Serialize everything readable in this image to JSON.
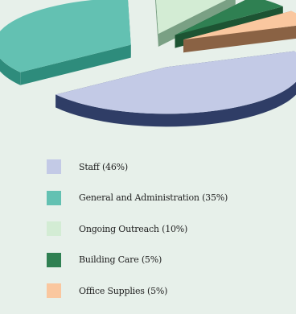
{
  "chart_data": {
    "type": "pie",
    "style": "3d-exploded",
    "title": "",
    "legend_position": "bottom",
    "slices": [
      {
        "label": "Staff (46%)",
        "value": 46,
        "color": "#c3cae6",
        "side": "#2f3d66"
      },
      {
        "label": "General and Administration (35%)",
        "value": 35,
        "color": "#63c1b2",
        "side": "#2e8c7c"
      },
      {
        "label": "Ongoing Outreach (10%)",
        "value": 10,
        "color": "#d3ecd4",
        "side": "#7aa084"
      },
      {
        "label": "Building Care (5%)",
        "value": 5,
        "color": "#2f8052",
        "side": "#1d5433"
      },
      {
        "label": "Office Supplies (5%)",
        "value": 5,
        "color": "#fac79f",
        "side": "#8a6244"
      }
    ]
  }
}
